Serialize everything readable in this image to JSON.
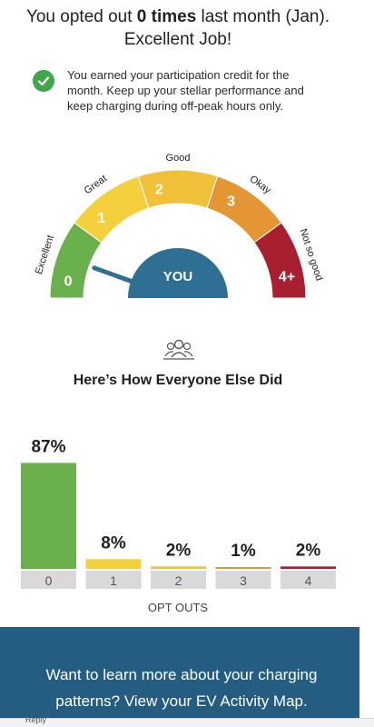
{
  "headline": {
    "prefix": "You opted out ",
    "bold": "0 times",
    "suffix": " last month (Jan).",
    "line2": "Excellent Job!"
  },
  "credit": {
    "icon": "check-circle-icon",
    "text": "You earned your participation credit for the month. Keep up your stellar performance and keep charging during off-peak hours only."
  },
  "gauge": {
    "needle_value": 0,
    "center_label": "YOU",
    "segments": [
      {
        "number": "0",
        "label": "Excellent",
        "color": "#6ab04c"
      },
      {
        "number": "1",
        "label": "Great",
        "color": "#f4d03f"
      },
      {
        "number": "2",
        "label": "Good",
        "color": "#f2c13a"
      },
      {
        "number": "3",
        "label": "Okay",
        "color": "#e59634"
      },
      {
        "number": "4+",
        "label": "Not so good",
        "color": "#a8202f"
      }
    ],
    "center_color": "#2f6f94"
  },
  "section_icon": "people-group-icon",
  "section_title": "Here’s How Everyone Else Did",
  "chart_data": {
    "type": "bar",
    "categories": [
      "0",
      "1",
      "2",
      "3",
      "4"
    ],
    "values": [
      87,
      8,
      2,
      1,
      2
    ],
    "value_labels": [
      "87%",
      "8%",
      "2%",
      "1%",
      "2%"
    ],
    "colors": [
      "#6ab04c",
      "#f4d03f",
      "#f2c13a",
      "#e59634",
      "#a8202f"
    ],
    "xlabel": "OPT OUTS",
    "ylabel": "",
    "ylim": [
      0,
      100
    ],
    "grid": false
  },
  "cta": {
    "text": "Want to learn more about your charging patterns? View your EV Activity Map."
  },
  "footer": {
    "reply_label": "Reply"
  }
}
